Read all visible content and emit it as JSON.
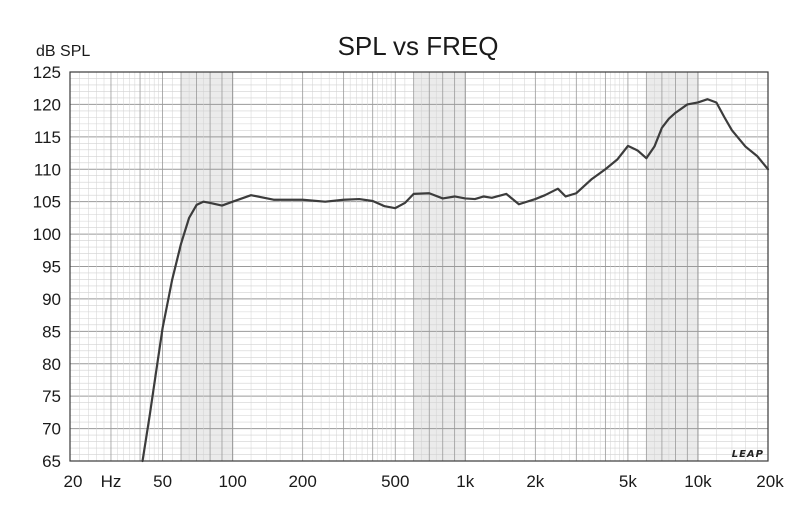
{
  "chart_data": {
    "type": "line",
    "title": "SPL vs FREQ",
    "ylabel": "dB SPL",
    "xlabel": "",
    "xscale": "log",
    "xlim": [
      20,
      20000
    ],
    "ylim": [
      65,
      125
    ],
    "grid": true,
    "y_ticks": [
      "125",
      "120",
      "115",
      "110",
      "105",
      "100",
      "95",
      "90",
      "85",
      "80",
      "75",
      "70",
      "65"
    ],
    "x_ticks": [
      {
        "value": 20,
        "label": "20"
      },
      {
        "value": 30,
        "label": "Hz"
      },
      {
        "value": 50,
        "label": "50"
      },
      {
        "value": 100,
        "label": "100"
      },
      {
        "value": 200,
        "label": "200"
      },
      {
        "value": 500,
        "label": "500"
      },
      {
        "value": 1000,
        "label": "1k"
      },
      {
        "value": 2000,
        "label": "2k"
      },
      {
        "value": 5000,
        "label": "5k"
      },
      {
        "value": 10000,
        "label": "10k"
      },
      {
        "value": 20000,
        "label": "20k"
      }
    ],
    "series": [
      {
        "x": [
          41,
          44,
          47,
          50,
          55,
          60,
          65,
          70,
          75,
          80,
          90,
          100,
          120,
          150,
          200,
          250,
          300,
          350,
          400,
          450,
          500,
          550,
          600,
          700,
          800,
          900,
          1000,
          1100,
          1200,
          1300,
          1500,
          1700,
          2000,
          2200,
          2500,
          2700,
          3000,
          3500,
          4000,
          4500,
          5000,
          5500,
          6000,
          6500,
          7000,
          7500,
          8000,
          9000,
          10000,
          11000,
          12000,
          13000,
          14000,
          16000,
          18000,
          20000
        ],
        "y": [
          65,
          72,
          79,
          85.5,
          93,
          98.5,
          102.5,
          104.5,
          105,
          104.8,
          104.4,
          105,
          106,
          105.3,
          105.3,
          105,
          105.3,
          105.4,
          105.1,
          104.3,
          104,
          104.8,
          106.2,
          106.3,
          105.5,
          105.8,
          105.5,
          105.4,
          105.8,
          105.6,
          106.2,
          104.6,
          105.4,
          106,
          107,
          105.8,
          106.3,
          108.5,
          110,
          111.5,
          113.6,
          112.9,
          111.7,
          113.5,
          116.4,
          117.8,
          118.7,
          120,
          120.3,
          120.8,
          120.3,
          118,
          116,
          113.5,
          112,
          110
        ]
      }
    ],
    "logo": "LEAP",
    "colors": {
      "curve": "#3c3c3c",
      "grid_minor": "#d2d2d2",
      "grid_major": "#9a9a9a",
      "band": "#ebebeb"
    }
  }
}
